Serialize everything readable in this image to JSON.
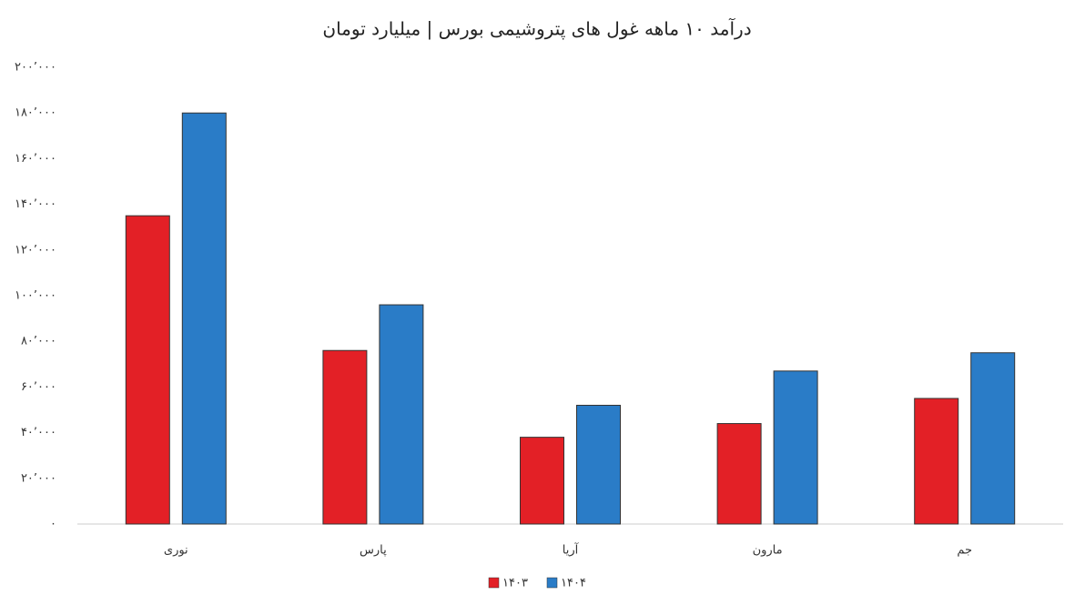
{
  "chart_data": {
    "type": "bar",
    "title": "درآمد ۱۰ ماهه غول های پتروشیمی بورس | میلیارد تومان",
    "categories": [
      "نوری",
      "پارس",
      "آریا",
      "مارون",
      "جم"
    ],
    "series": [
      {
        "name": "۱۴۰۳",
        "color": "#e32026",
        "values": [
          135000,
          76000,
          38000,
          44000,
          55000
        ]
      },
      {
        "name": "۱۴۰۴",
        "color": "#2a7cc7",
        "values": [
          180000,
          96000,
          52000,
          67000,
          75000
        ]
      }
    ],
    "ylim": [
      0,
      200000
    ],
    "yticks": [
      {
        "value": 0,
        "label": "۰"
      },
      {
        "value": 20000,
        "label": "۲۰٬۰۰۰"
      },
      {
        "value": 40000,
        "label": "۴۰٬۰۰۰"
      },
      {
        "value": 60000,
        "label": "۶۰٬۰۰۰"
      },
      {
        "value": 80000,
        "label": "۸۰٬۰۰۰"
      },
      {
        "value": 100000,
        "label": "۱۰۰٬۰۰۰"
      },
      {
        "value": 120000,
        "label": "۱۲۰٬۰۰۰"
      },
      {
        "value": 140000,
        "label": "۱۴۰٬۰۰۰"
      },
      {
        "value": 160000,
        "label": "۱۶۰٬۰۰۰"
      },
      {
        "value": 180000,
        "label": "۱۸۰٬۰۰۰"
      },
      {
        "value": 200000,
        "label": "۲۰۰٬۰۰۰"
      }
    ],
    "grid": false
  }
}
